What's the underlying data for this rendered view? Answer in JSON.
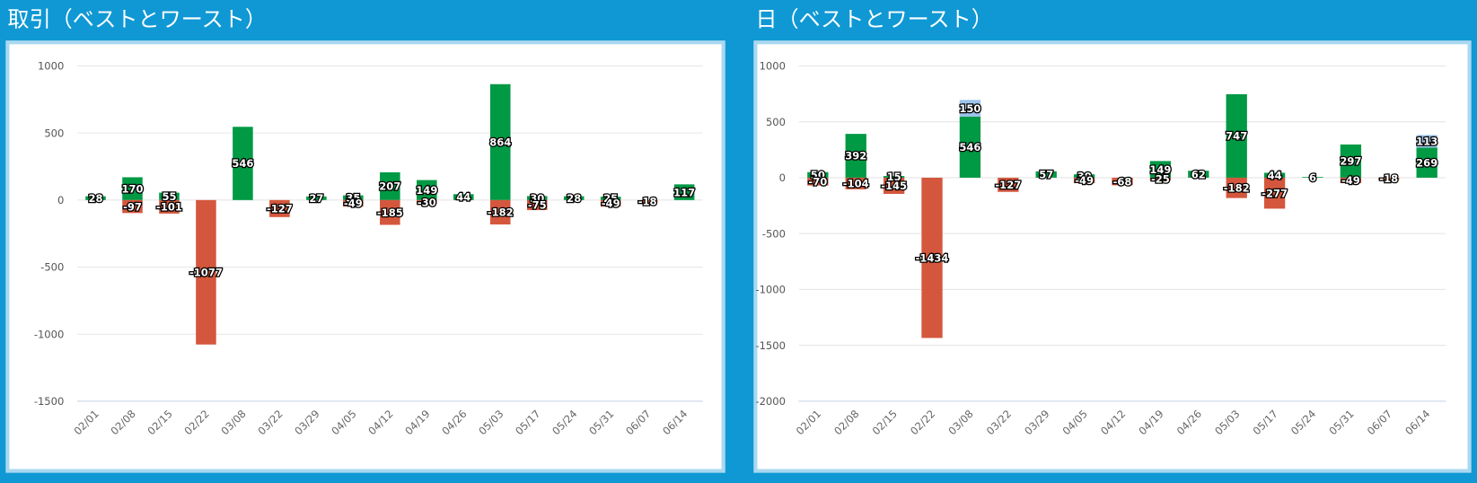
{
  "chart_data": [
    {
      "type": "bar",
      "title": "取引（ベストとワースト）",
      "categories": [
        "02/01",
        "02/08",
        "02/15",
        "02/22",
        "03/08",
        "03/22",
        "03/29",
        "04/05",
        "04/12",
        "04/19",
        "04/26",
        "05/03",
        "05/17",
        "05/24",
        "05/31",
        "06/07",
        "06/14"
      ],
      "series": [
        {
          "color": "#009944",
          "values": [
            28,
            170,
            55,
            null,
            546,
            null,
            27,
            35,
            207,
            149,
            44,
            864,
            30,
            28,
            25,
            null,
            117
          ]
        },
        {
          "color": "#d4573d",
          "values": [
            null,
            -97,
            -101,
            -1077,
            null,
            -127,
            null,
            -49,
            -185,
            -30,
            null,
            -182,
            -75,
            null,
            -49,
            -18,
            null
          ]
        }
      ],
      "value_labels_hidden": [],
      "ylim": [
        -1500,
        1000
      ],
      "yticks": [
        -1500,
        -1000,
        -500,
        0,
        500,
        1000
      ],
      "grid": true
    },
    {
      "type": "bar",
      "title": "日（ベストとワースト）",
      "categories": [
        "02/01",
        "02/08",
        "02/15",
        "02/22",
        "03/08",
        "03/22",
        "03/29",
        "04/05",
        "04/12",
        "04/19",
        "04/26",
        "05/03",
        "05/17",
        "05/24",
        "05/31",
        "06/07",
        "06/14"
      ],
      "series": [
        {
          "color": "#009944",
          "values": [
            50,
            392,
            15,
            null,
            546,
            null,
            57,
            30,
            null,
            149,
            62,
            747,
            44,
            6,
            297,
            null,
            269
          ]
        },
        {
          "color": "#d4573d",
          "values": [
            -70,
            -104,
            -145,
            -1434,
            null,
            -127,
            null,
            -49,
            -68,
            -25,
            null,
            -182,
            -277,
            null,
            -49,
            -18,
            null
          ]
        },
        {
          "color": "#9cc3ea",
          "values": [
            null,
            null,
            null,
            null,
            150,
            null,
            null,
            null,
            null,
            null,
            null,
            null,
            null,
            null,
            null,
            null,
            113
          ]
        }
      ],
      "ylim": [
        -2000,
        1000
      ],
      "yticks": [
        -2000,
        -1500,
        -1000,
        -500,
        0,
        500,
        1000
      ],
      "grid": true
    }
  ]
}
